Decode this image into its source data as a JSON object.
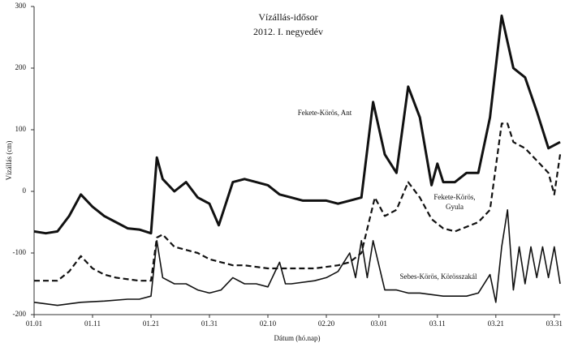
{
  "chart_data": {
    "type": "line",
    "title": "Vízállás-idősor",
    "subtitle": "2012. I. negyedév",
    "x_label": "Dátum (hó.nap)",
    "y_label": "Vízállás (cm)",
    "xlim": [
      0,
      90
    ],
    "ylim": [
      -200,
      300
    ],
    "yticks": [
      -200,
      -100,
      0,
      100,
      200,
      300
    ],
    "xticks": [
      {
        "value": 0,
        "label": "01.01"
      },
      {
        "value": 10,
        "label": "01.11"
      },
      {
        "value": 20,
        "label": "01.21"
      },
      {
        "value": 30,
        "label": "01.31"
      },
      {
        "value": 40,
        "label": "02.10"
      },
      {
        "value": 50,
        "label": "02.20"
      },
      {
        "value": 59,
        "label": "03.01"
      },
      {
        "value": 69,
        "label": "03.11"
      },
      {
        "value": 79,
        "label": "03.21"
      },
      {
        "value": 89,
        "label": "03.31"
      }
    ],
    "grid": false,
    "series": [
      {
        "name": "Fekete-Körös, Ant",
        "color": "#111111",
        "line_width": 3,
        "dash": false,
        "x": [
          0,
          2,
          4,
          6,
          8,
          10,
          12,
          14,
          16,
          18,
          20,
          21,
          22,
          24,
          26,
          28,
          30,
          31.6,
          34,
          36,
          38,
          40,
          42,
          44,
          46,
          48,
          50,
          52,
          54,
          56,
          58,
          60,
          62,
          64,
          66,
          68,
          69,
          70,
          72,
          74,
          76,
          78,
          80,
          82,
          84,
          86,
          88,
          90
        ],
        "values": [
          -65,
          -68,
          -65,
          -40,
          -5,
          -25,
          -40,
          -50,
          -60,
          -62,
          -68,
          55,
          20,
          0,
          15,
          -10,
          -20,
          -55,
          15,
          20,
          15,
          10,
          -5,
          -10,
          -15,
          -15,
          -15,
          -20,
          -15,
          -10,
          145,
          60,
          30,
          170,
          120,
          10,
          45,
          15,
          15,
          30,
          30,
          120,
          285,
          200,
          185,
          130,
          70,
          80
        ]
      },
      {
        "name": "Fekete-Körös, Gyula",
        "color": "#111111",
        "line_width": 2.2,
        "dash": true,
        "x": [
          0,
          4,
          6,
          8,
          10,
          12,
          14,
          18,
          20,
          21,
          22,
          24,
          26,
          28,
          30,
          32,
          34,
          36,
          40,
          44,
          48,
          52,
          54,
          56,
          58.3,
          60,
          62,
          64,
          66,
          68,
          70,
          72,
          76,
          78,
          80,
          81,
          82,
          84,
          86,
          88,
          89,
          90
        ],
        "values": [
          -145,
          -145,
          -130,
          -105,
          -125,
          -135,
          -140,
          -145,
          -145,
          -75,
          -70,
          -90,
          -95,
          -100,
          -110,
          -115,
          -120,
          -120,
          -125,
          -125,
          -125,
          -120,
          -115,
          -100,
          -10,
          -40,
          -30,
          15,
          -10,
          -45,
          -60,
          -65,
          -50,
          -30,
          110,
          110,
          80,
          70,
          50,
          30,
          -5,
          60
        ]
      },
      {
        "name": "Sebes-Körös, Körösszakál",
        "color": "#111111",
        "line_width": 1.6,
        "dash": false,
        "x": [
          0,
          4,
          8,
          12,
          16,
          18,
          20,
          21,
          22,
          24,
          26,
          28,
          30,
          32,
          34,
          36,
          38,
          40,
          42,
          43,
          44,
          48,
          50,
          52,
          54,
          55,
          56,
          57,
          58,
          60,
          62,
          64,
          66,
          70,
          74,
          76,
          78,
          79,
          80,
          81,
          82,
          83,
          84,
          85,
          86,
          87,
          88,
          89,
          90
        ],
        "values": [
          -180,
          -185,
          -180,
          -178,
          -175,
          -175,
          -170,
          -80,
          -140,
          -150,
          -150,
          -160,
          -165,
          -160,
          -140,
          -150,
          -150,
          -155,
          -115,
          -150,
          -150,
          -145,
          -140,
          -130,
          -100,
          -140,
          -80,
          -140,
          -80,
          -160,
          -160,
          -165,
          -165,
          -170,
          -170,
          -165,
          -135,
          -180,
          -90,
          -30,
          -160,
          -90,
          -150,
          -90,
          -140,
          -90,
          -140,
          -90,
          -150
        ]
      }
    ],
    "annotations": [
      {
        "lines": [
          "Fekete-Körös, Ant"
        ]
      },
      {
        "lines": [
          "Fekete-Körös,",
          "Gyula"
        ]
      },
      {
        "lines": [
          "Sebes-Körös,  Körösszakál"
        ]
      }
    ]
  }
}
